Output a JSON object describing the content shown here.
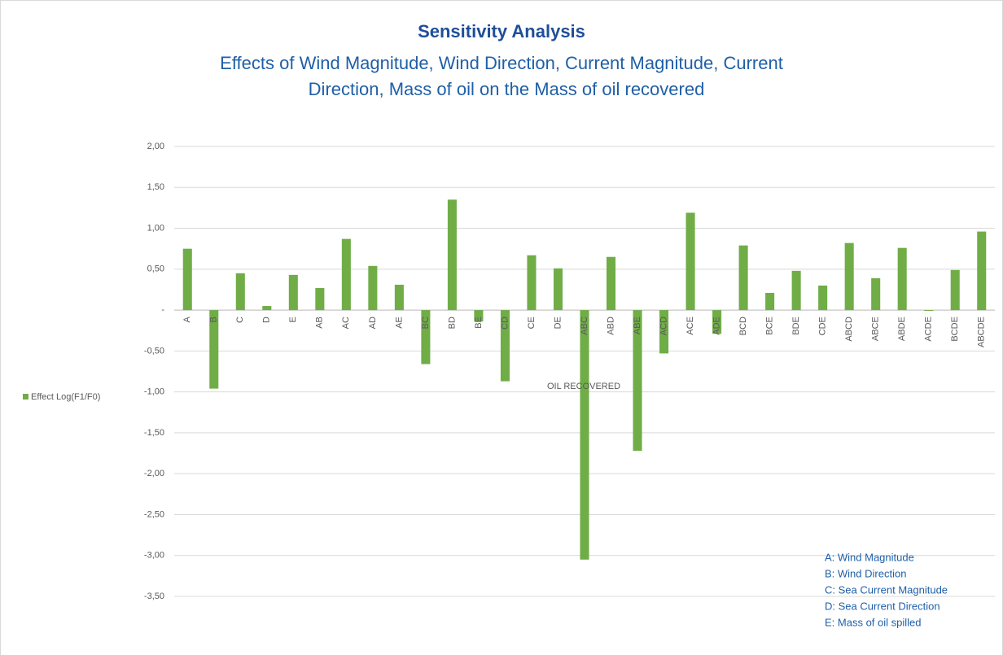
{
  "chart_data": {
    "type": "bar",
    "title": "Sensitivity Analysis",
    "subtitle": [
      "Effects of Wind Magnitude, Wind Direction, Current Magnitude, Current",
      "Direction, Mass of oil on the Mass of oil recovered"
    ],
    "x_label": "OIL RECOVERED",
    "categories": [
      "A",
      "B",
      "C",
      "D",
      "E",
      "AB",
      "AC",
      "AD",
      "AE",
      "BC",
      "BD",
      "BE",
      "CD",
      "CE",
      "DE",
      "ABC",
      "ABD",
      "ABE",
      "ACD",
      "ACE",
      "ADE",
      "BCD",
      "BCE",
      "BDE",
      "CDE",
      "ABCD",
      "ABCE",
      "ABDE",
      "ACDE",
      "BCDE",
      "ABCDE"
    ],
    "series": [
      {
        "name": "Effect Log(F1/F0)",
        "color": "#70ad47",
        "values": [
          0.75,
          -0.96,
          0.45,
          0.05,
          0.43,
          0.27,
          0.87,
          0.54,
          0.31,
          -0.66,
          1.35,
          -0.14,
          -0.87,
          0.67,
          0.51,
          -3.05,
          0.65,
          -1.72,
          -0.53,
          1.19,
          -0.29,
          0.79,
          0.21,
          0.48,
          0.3,
          0.82,
          0.39,
          0.76,
          -0.01,
          0.49,
          0.96
        ]
      }
    ],
    "ylim": [
      -3.5,
      2.0
    ],
    "yticks": [
      {
        "value": 2.0,
        "label": "2,00"
      },
      {
        "value": 1.5,
        "label": "1,50"
      },
      {
        "value": 1.0,
        "label": "1,00"
      },
      {
        "value": 0.5,
        "label": "0,50"
      },
      {
        "value": 0,
        "label": "-"
      },
      {
        "value": -0.5,
        "label": "-0,50"
      },
      {
        "value": -1.0,
        "label": "-1,00"
      },
      {
        "value": -1.5,
        "label": "-1,50"
      },
      {
        "value": -2.0,
        "label": "-2,00"
      },
      {
        "value": -2.5,
        "label": "-2,50"
      },
      {
        "value": -3.0,
        "label": "-3,00"
      },
      {
        "value": -3.5,
        "label": "-3,50"
      }
    ],
    "grid": true,
    "legend": "left",
    "annotations": [
      "A: Wind Magnitude",
      "B: Wind Direction",
      "C: Sea Current Magnitude",
      "D: Sea Current Direction",
      "E: Mass of oil spilled"
    ]
  }
}
